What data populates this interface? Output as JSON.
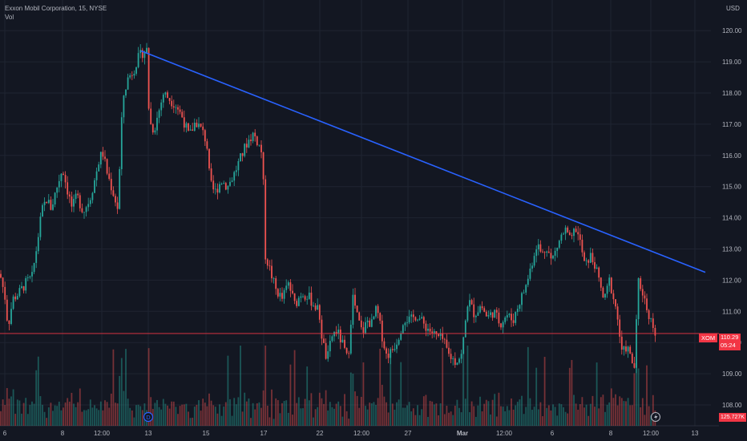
{
  "legend": {
    "title": "Exxon Mobil Corporation, 15, NYSE",
    "volume_label": "Vol"
  },
  "currency": "USD",
  "last_price": {
    "symbol": "XOM",
    "value": "110.29",
    "countdown": "05:24",
    "volume": "125.727K"
  },
  "colors": {
    "background": "#131722",
    "grid": "#1f2431",
    "up": "#26a69a",
    "down": "#ef5350",
    "trendline": "#2962ff",
    "price_line": "#f23645"
  },
  "icons": {
    "dividend_marker": "D",
    "lightning": "lightning-icon"
  },
  "chart_data": {
    "type": "candlestick",
    "title": "Exxon Mobil Corporation, 15, NYSE",
    "ylim": [
      107.8,
      120.4
    ],
    "y_ticks": [
      108,
      109,
      110,
      111,
      112,
      113,
      114,
      115,
      116,
      117,
      118,
      119,
      120
    ],
    "x_ticks": [
      "6",
      "8",
      "12:00",
      "13",
      "15",
      "17",
      "22",
      "12:00",
      "27",
      "Mar",
      "12:00",
      "6",
      "8",
      "12:00",
      "13"
    ],
    "price_path": [
      [
        0,
        112.2
      ],
      [
        6,
        111.5
      ],
      [
        10,
        110.5
      ],
      [
        16,
        111.4
      ],
      [
        24,
        111.6
      ],
      [
        32,
        111.9
      ],
      [
        40,
        112.1
      ],
      [
        46,
        113.1
      ],
      [
        52,
        114.2
      ],
      [
        58,
        114.6
      ],
      [
        64,
        114.3
      ],
      [
        70,
        114.9
      ],
      [
        78,
        115.6
      ],
      [
        84,
        114.9
      ],
      [
        90,
        114.3
      ],
      [
        96,
        114.7
      ],
      [
        104,
        114.2
      ],
      [
        112,
        114.6
      ],
      [
        118,
        115.2
      ],
      [
        124,
        115.9
      ],
      [
        128,
        116.1
      ],
      [
        134,
        115.4
      ],
      [
        140,
        114.9
      ],
      [
        148,
        114.2
      ],
      [
        150,
        116.4
      ],
      [
        154,
        117.9
      ],
      [
        160,
        118.5
      ],
      [
        166,
        118.7
      ],
      [
        172,
        119.1
      ],
      [
        178,
        119.3
      ],
      [
        184,
        119.4
      ],
      [
        186,
        117.1
      ],
      [
        192,
        116.8
      ],
      [
        198,
        117.4
      ],
      [
        204,
        118.0
      ],
      [
        212,
        117.8
      ],
      [
        220,
        117.6
      ],
      [
        228,
        117.2
      ],
      [
        236,
        116.6
      ],
      [
        244,
        117.1
      ],
      [
        252,
        116.8
      ],
      [
        258,
        116.4
      ],
      [
        262,
        115.1
      ],
      [
        268,
        114.8
      ],
      [
        276,
        115.2
      ],
      [
        284,
        115.0
      ],
      [
        292,
        115.4
      ],
      [
        300,
        115.9
      ],
      [
        308,
        116.4
      ],
      [
        316,
        116.7
      ],
      [
        322,
        116.4
      ],
      [
        328,
        116.0
      ],
      [
        330,
        112.9
      ],
      [
        336,
        112.4
      ],
      [
        344,
        111.7
      ],
      [
        352,
        111.4
      ],
      [
        360,
        111.9
      ],
      [
        368,
        111.2
      ],
      [
        376,
        111.6
      ],
      [
        384,
        111.5
      ],
      [
        392,
        111.2
      ],
      [
        398,
        111.0
      ],
      [
        402,
        110.1
      ],
      [
        408,
        109.4
      ],
      [
        414,
        110.2
      ],
      [
        420,
        110.4
      ],
      [
        428,
        109.9
      ],
      [
        434,
        109.4
      ],
      [
        440,
        111.5
      ],
      [
        446,
        110.8
      ],
      [
        452,
        110.3
      ],
      [
        458,
        110.7
      ],
      [
        464,
        110.6
      ],
      [
        470,
        111.1
      ],
      [
        476,
        110.3
      ],
      [
        482,
        109.6
      ],
      [
        488,
        109.7
      ],
      [
        496,
        110.1
      ],
      [
        504,
        110.8
      ],
      [
        512,
        110.7
      ],
      [
        520,
        110.9
      ],
      [
        528,
        110.6
      ],
      [
        536,
        110.4
      ],
      [
        544,
        110.2
      ],
      [
        552,
        110.1
      ],
      [
        560,
        109.6
      ],
      [
        568,
        109.4
      ],
      [
        576,
        109.6
      ],
      [
        584,
        111.4
      ],
      [
        592,
        110.9
      ],
      [
        600,
        111.2
      ],
      [
        608,
        110.8
      ],
      [
        616,
        111.0
      ],
      [
        624,
        110.6
      ],
      [
        632,
        110.9
      ],
      [
        640,
        110.7
      ],
      [
        648,
        111.3
      ],
      [
        656,
        111.8
      ],
      [
        664,
        112.6
      ],
      [
        670,
        113.2
      ],
      [
        676,
        112.8
      ],
      [
        682,
        113.1
      ],
      [
        688,
        112.6
      ],
      [
        694,
        113.0
      ],
      [
        700,
        113.4
      ],
      [
        706,
        113.6
      ],
      [
        712,
        113.2
      ],
      [
        718,
        113.7
      ],
      [
        724,
        113.2
      ],
      [
        730,
        112.4
      ],
      [
        736,
        112.8
      ],
      [
        742,
        112.5
      ],
      [
        748,
        111.9
      ],
      [
        754,
        111.3
      ],
      [
        760,
        112.0
      ],
      [
        764,
        111.6
      ],
      [
        770,
        110.9
      ],
      [
        776,
        109.6
      ],
      [
        782,
        109.9
      ],
      [
        788,
        109.4
      ],
      [
        792,
        109.2
      ],
      [
        796,
        112.0
      ],
      [
        802,
        111.6
      ],
      [
        808,
        111.0
      ],
      [
        814,
        110.6
      ],
      [
        818,
        110.3
      ]
    ],
    "trendline": {
      "start": [
        "12",
        119.35
      ],
      "end": [
        "13",
        112.25
      ]
    },
    "last_value": 110.29
  }
}
